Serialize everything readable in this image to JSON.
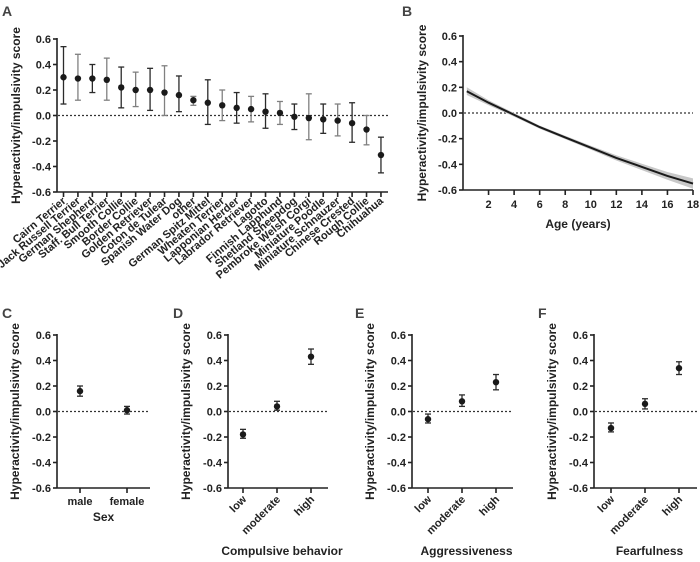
{
  "chart_data": [
    {
      "panel": "A",
      "type": "scatter",
      "subtype": "point-with-error-bars",
      "title": "",
      "xlabel": "",
      "ylabel": "Hyperactivity/impulsivity score",
      "ylim": [
        -0.6,
        0.6
      ],
      "yticks": [
        "0.6",
        "0.4",
        "0.2",
        "0.0",
        "-0.2",
        "-0.4",
        "-0.6"
      ],
      "reference_line": 0.0,
      "categories": [
        "Cairn Terrier",
        "Jack Russell Terrier",
        "German Shepherd",
        "Staff. Bull Terrier",
        "Smooth Collie",
        "Border Collie",
        "Golden Retriever",
        "Coton de Tulear",
        "Spanish Water Dog",
        "other",
        "German Spitz Mittel",
        "Wheaten Terrier",
        "Lapponian Herder",
        "Labrador Retriever",
        "Lagotto",
        "Finnish Lapphund",
        "Shetland Sheepdog",
        "Pembroke Welsh Corgi",
        "Miniature Poodle",
        "Miniature Schnauzer",
        "Chinese Crested",
        "Rough Collie",
        "Chihuahua"
      ],
      "values": [
        0.3,
        0.29,
        0.29,
        0.28,
        0.22,
        0.2,
        0.2,
        0.18,
        0.16,
        0.12,
        0.1,
        0.08,
        0.06,
        0.05,
        0.03,
        0.02,
        -0.01,
        -0.02,
        -0.03,
        -0.04,
        -0.06,
        -0.11,
        -0.31
      ],
      "lower": [
        0.09,
        0.12,
        0.18,
        0.12,
        0.06,
        0.07,
        0.04,
        0.0,
        0.03,
        0.08,
        -0.07,
        -0.04,
        -0.06,
        -0.05,
        -0.1,
        -0.07,
        -0.11,
        -0.19,
        -0.14,
        -0.16,
        -0.21,
        -0.23,
        -0.45
      ],
      "upper": [
        0.54,
        0.48,
        0.4,
        0.45,
        0.38,
        0.34,
        0.37,
        0.39,
        0.31,
        0.15,
        0.28,
        0.2,
        0.18,
        0.15,
        0.17,
        0.11,
        0.09,
        0.17,
        0.09,
        0.09,
        0.1,
        0.0,
        -0.17
      ]
    },
    {
      "panel": "B",
      "type": "line",
      "subtype": "fit-with-confidence-band",
      "title": "",
      "xlabel": "Age (years)",
      "ylabel": "Hyperactivity/impulsivity score",
      "xlim": [
        0,
        18
      ],
      "ylim": [
        -0.6,
        0.6
      ],
      "xticks": [
        "2",
        "4",
        "6",
        "8",
        "10",
        "12",
        "14",
        "16",
        "18"
      ],
      "yticks": [
        "0.6",
        "0.4",
        "0.2",
        "0.0",
        "-0.2",
        "-0.4",
        "-0.6"
      ],
      "reference_line": 0.0,
      "x": [
        0.3,
        2,
        3.7,
        6,
        8,
        10,
        12,
        14,
        16,
        18
      ],
      "y": [
        0.17,
        0.08,
        0.0,
        -0.11,
        -0.19,
        -0.27,
        -0.35,
        -0.42,
        -0.49,
        -0.55
      ],
      "band_halfwidth": [
        0.03,
        0.02,
        0.015,
        0.012,
        0.013,
        0.015,
        0.02,
        0.025,
        0.03,
        0.04
      ]
    },
    {
      "panel": "C",
      "type": "scatter",
      "subtype": "point-with-error-bars",
      "xlabel": "Sex",
      "ylabel": "Hyperactivity/impulsivity score",
      "ylim": [
        -0.6,
        0.6
      ],
      "yticks": [
        "0.6",
        "0.4",
        "0.2",
        "0.0",
        "-0.2",
        "-0.4",
        "-0.6"
      ],
      "reference_line": 0.0,
      "categories": [
        "male",
        "female"
      ],
      "values": [
        0.16,
        0.01
      ],
      "lower": [
        0.12,
        -0.02
      ],
      "upper": [
        0.2,
        0.04
      ]
    },
    {
      "panel": "D",
      "type": "scatter",
      "subtype": "point-with-error-bars",
      "xlabel": "Compulsive behavior",
      "ylabel": "Hyperactivity/impulsivity score",
      "ylim": [
        -0.6,
        0.6
      ],
      "yticks": [
        "0.6",
        "0.4",
        "0.2",
        "0.0",
        "-0.2",
        "-0.4",
        "-0.6"
      ],
      "reference_line": 0.0,
      "categories": [
        "low",
        "moderate",
        "high"
      ],
      "values": [
        -0.18,
        0.04,
        0.43
      ],
      "lower": [
        -0.21,
        0.01,
        0.37
      ],
      "upper": [
        -0.14,
        0.08,
        0.49
      ]
    },
    {
      "panel": "E",
      "type": "scatter",
      "subtype": "point-with-error-bars",
      "xlabel": "Aggressiveness",
      "ylabel": "Hyperactivity/impulsivity score",
      "ylim": [
        -0.6,
        0.6
      ],
      "yticks": [
        "0.6",
        "0.4",
        "0.2",
        "0.0",
        "-0.2",
        "-0.4",
        "-0.6"
      ],
      "reference_line": 0.0,
      "categories": [
        "low",
        "moderate",
        "high"
      ],
      "values": [
        -0.06,
        0.08,
        0.23
      ],
      "lower": [
        -0.09,
        0.04,
        0.17
      ],
      "upper": [
        -0.02,
        0.13,
        0.29
      ]
    },
    {
      "panel": "F",
      "type": "scatter",
      "subtype": "point-with-error-bars",
      "xlabel": "Fearfulness",
      "ylabel": "Hyperactivity/impulsivity score",
      "ylim": [
        -0.6,
        0.6
      ],
      "yticks": [
        "0.6",
        "0.4",
        "0.2",
        "0.0",
        "-0.2",
        "-0.4",
        "-0.6"
      ],
      "reference_line": 0.0,
      "categories": [
        "low",
        "moderate",
        "high"
      ],
      "values": [
        -0.13,
        0.06,
        0.34
      ],
      "lower": [
        -0.16,
        0.02,
        0.29
      ],
      "upper": [
        -0.09,
        0.1,
        0.39
      ]
    }
  ],
  "colors": {
    "point": "#1a1a1a",
    "errorbar_dark": "#2b2b2b",
    "errorbar_light": "#808080",
    "band": "#c8c8c8",
    "line": "#1a1a1a"
  }
}
